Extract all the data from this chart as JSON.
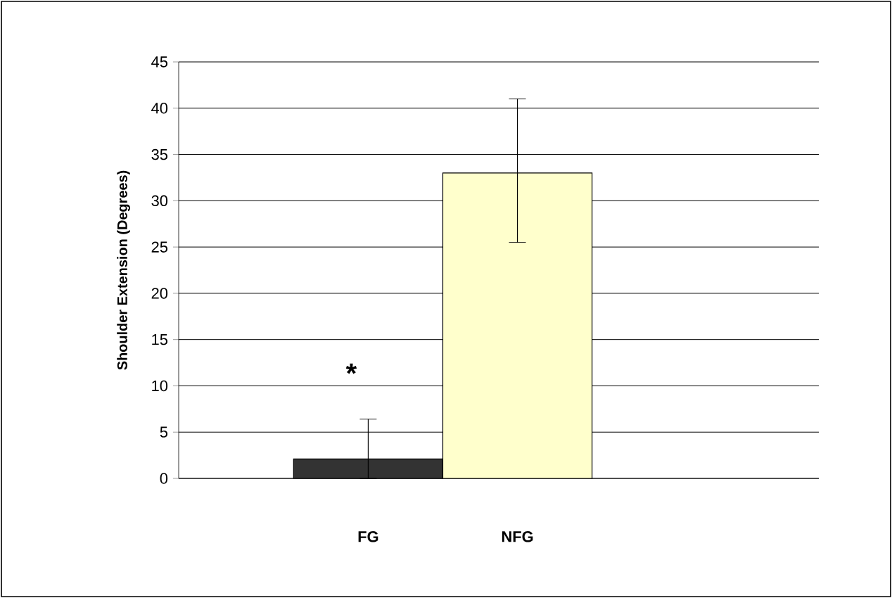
{
  "chart_data": {
    "type": "bar",
    "ylabel": "Shoulder Extension (Degrees)",
    "categories": [
      "FG",
      "NFG"
    ],
    "values": [
      2.1,
      33.0
    ],
    "colors": [
      "#333333",
      "#ffffcc"
    ],
    "errors": [
      [
        0,
        6.4
      ],
      [
        25.5,
        41.0
      ]
    ],
    "ylim": [
      0,
      45
    ],
    "yticks": [
      0,
      5,
      10,
      15,
      20,
      25,
      30,
      35,
      40,
      45
    ],
    "grid": "y",
    "annotations": [
      "*"
    ]
  }
}
